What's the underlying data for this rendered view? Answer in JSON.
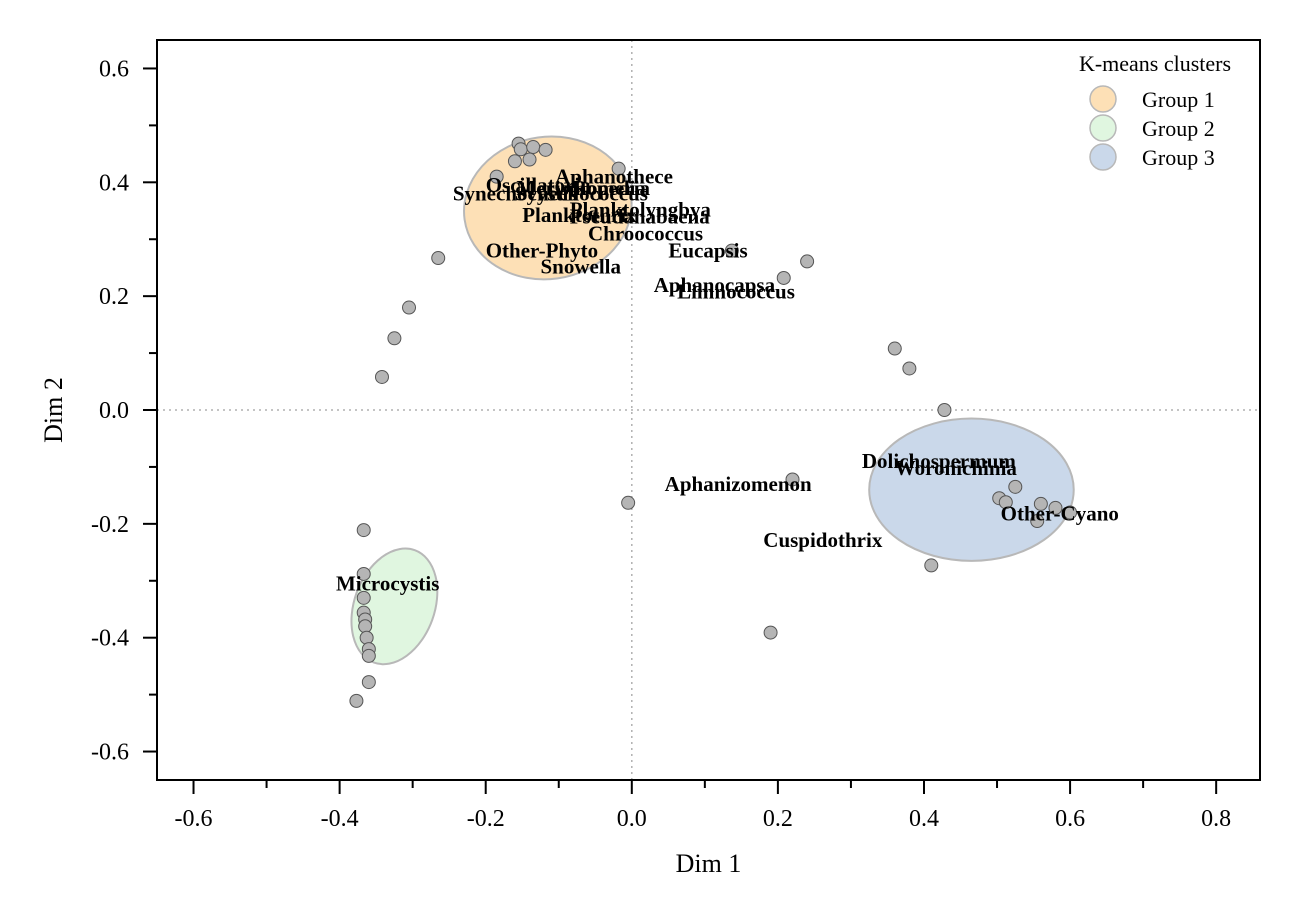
{
  "chart_data": {
    "type": "scatter",
    "title": "",
    "xlabel": "Dim 1",
    "ylabel": "Dim 2",
    "xlim": [
      -0.65,
      0.86
    ],
    "ylim": [
      -0.65,
      0.65
    ],
    "xticks": [
      -0.6,
      -0.4,
      -0.2,
      0.0,
      0.2,
      0.4,
      0.6,
      0.8
    ],
    "xtick_labels": [
      "-0.6",
      "-0.4",
      "-0.2",
      "0.0",
      "0.2",
      "0.4",
      "0.6",
      "0.8"
    ],
    "yticks": [
      -0.6,
      -0.4,
      -0.2,
      0.0,
      0.2,
      0.4,
      0.6
    ],
    "ytick_labels": [
      "-0.6",
      "-0.4",
      "-0.2",
      "0.0",
      "0.2",
      "0.4",
      "0.6"
    ],
    "reference_lines": {
      "x": 0,
      "y": 0,
      "style": "dotted"
    },
    "grid": false,
    "legend": {
      "title": "K-means clusters",
      "placement": "top-right",
      "entries": [
        {
          "label": "Group 1",
          "color": "#fde0b6"
        },
        {
          "label": "Group 2",
          "color": "#e0f6e0"
        },
        {
          "label": "Group 3",
          "color": "#cad8ea"
        }
      ]
    },
    "ellipses": [
      {
        "group": "Group 1",
        "cx": -0.115,
        "cy": 0.355,
        "rx": 0.115,
        "ry": 0.125,
        "angle": -8,
        "color": "#fde0b6"
      },
      {
        "group": "Group 2",
        "cx": -0.325,
        "cy": -0.345,
        "rx": 0.055,
        "ry": 0.105,
        "angle": 20,
        "color": "#e0f6e0"
      },
      {
        "group": "Group 3",
        "cx": 0.465,
        "cy": -0.14,
        "rx": 0.14,
        "ry": 0.125,
        "angle": 0,
        "color": "#cad8ea"
      }
    ],
    "points": [
      {
        "x": -0.155,
        "y": 0.468
      },
      {
        "x": -0.152,
        "y": 0.458
      },
      {
        "x": -0.135,
        "y": 0.462
      },
      {
        "x": -0.118,
        "y": 0.457
      },
      {
        "x": -0.16,
        "y": 0.437
      },
      {
        "x": -0.14,
        "y": 0.44
      },
      {
        "x": -0.185,
        "y": 0.41
      },
      {
        "x": -0.018,
        "y": 0.424
      },
      {
        "x": -0.265,
        "y": 0.267
      },
      {
        "x": -0.305,
        "y": 0.18
      },
      {
        "x": -0.325,
        "y": 0.126
      },
      {
        "x": -0.342,
        "y": 0.058
      },
      {
        "x": 0.137,
        "y": 0.28
      },
      {
        "x": 0.208,
        "y": 0.232
      },
      {
        "x": 0.24,
        "y": 0.261
      },
      {
        "x": 0.36,
        "y": 0.108
      },
      {
        "x": 0.38,
        "y": 0.073
      },
      {
        "x": 0.428,
        "y": 0.0
      },
      {
        "x": 0.22,
        "y": -0.122
      },
      {
        "x": -0.005,
        "y": -0.163
      },
      {
        "x": 0.525,
        "y": -0.135
      },
      {
        "x": 0.503,
        "y": -0.155
      },
      {
        "x": 0.512,
        "y": -0.162
      },
      {
        "x": 0.56,
        "y": -0.165
      },
      {
        "x": 0.58,
        "y": -0.172
      },
      {
        "x": 0.6,
        "y": -0.18
      },
      {
        "x": 0.555,
        "y": -0.195
      },
      {
        "x": 0.41,
        "y": -0.273
      },
      {
        "x": 0.19,
        "y": -0.391
      },
      {
        "x": -0.367,
        "y": -0.211
      },
      {
        "x": -0.367,
        "y": -0.288
      },
      {
        "x": -0.367,
        "y": -0.33
      },
      {
        "x": -0.367,
        "y": -0.356
      },
      {
        "x": -0.365,
        "y": -0.368
      },
      {
        "x": -0.365,
        "y": -0.38
      },
      {
        "x": -0.363,
        "y": -0.4
      },
      {
        "x": -0.36,
        "y": -0.42
      },
      {
        "x": -0.36,
        "y": -0.432
      },
      {
        "x": -0.36,
        "y": -0.478
      },
      {
        "x": -0.377,
        "y": -0.511
      }
    ],
    "labels": [
      {
        "text": "Aphanothece",
        "x": -0.105,
        "y": 0.41
      },
      {
        "text": "Oscillatoria",
        "x": -0.2,
        "y": 0.395
      },
      {
        "text": "Merismopedia",
        "x": -0.158,
        "y": 0.39
      },
      {
        "text": "Romeria",
        "x": -0.082,
        "y": 0.39
      },
      {
        "text": "Synechocystis",
        "x": -0.245,
        "y": 0.38
      },
      {
        "text": "Synechococcus",
        "x": -0.16,
        "y": 0.38
      },
      {
        "text": "Planktolyngbya",
        "x": -0.085,
        "y": 0.352
      },
      {
        "text": "Pseudanabaena",
        "x": -0.085,
        "y": 0.34
      },
      {
        "text": "Planktothrix",
        "x": -0.15,
        "y": 0.343
      },
      {
        "text": "Chroococcus",
        "x": -0.06,
        "y": 0.31
      },
      {
        "text": "Other-Phyto",
        "x": -0.2,
        "y": 0.28
      },
      {
        "text": "Snowella",
        "x": -0.125,
        "y": 0.252
      },
      {
        "text": "Eucapsis",
        "x": 0.05,
        "y": 0.28
      },
      {
        "text": "Aphanocapsa",
        "x": 0.03,
        "y": 0.22
      },
      {
        "text": "Limnococcus",
        "x": 0.062,
        "y": 0.208
      },
      {
        "text": "Dolichospermum",
        "x": 0.315,
        "y": -0.09
      },
      {
        "text": "Woronichinia",
        "x": 0.36,
        "y": -0.102
      },
      {
        "text": "Aphanizomenon",
        "x": 0.045,
        "y": -0.13
      },
      {
        "text": "Other-Cyano",
        "x": 0.505,
        "y": -0.182
      },
      {
        "text": "Cuspidothrix",
        "x": 0.18,
        "y": -0.228
      },
      {
        "text": "Microcystis",
        "x": -0.405,
        "y": -0.305
      }
    ]
  }
}
